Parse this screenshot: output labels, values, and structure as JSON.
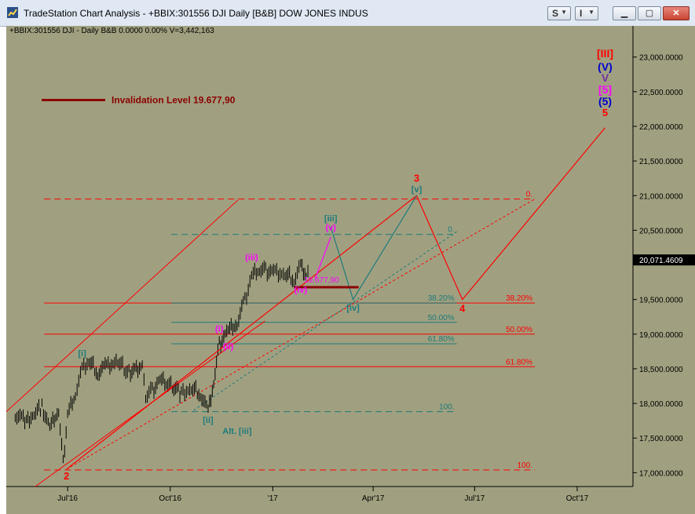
{
  "window": {
    "title": "TradeStation Chart Analysis - +BBIX:301556 DJI Daily [B&B] DOW JONES INDUS",
    "btn_s": "S",
    "btn_i": "I",
    "min_icon": "minimize-icon",
    "max_icon": "maximize-icon",
    "close_icon": "close-icon"
  },
  "info_line": "+BBIX:301556 DJI - Daily  B&B  0.0000  0.00%  V=3,442,163",
  "colors": {
    "background": "#a0a080",
    "red": "#ff0000",
    "darkred": "#8b0000",
    "teal": "#1d7a7a",
    "magenta": "#ff00ff",
    "blue": "#0000cc",
    "price_tag": "#000000"
  },
  "chart_data": {
    "type": "line",
    "symbol": "+BBIX:301556 DJI",
    "interval": "Daily",
    "y_axis": {
      "range": [
        16800,
        23450
      ],
      "ticks": [
        "23,000.0000",
        "22,500.0000",
        "22,000.0000",
        "21,500.0000",
        "21,000.0000",
        "20,500.0000",
        "19,500.0000",
        "19,000.0000",
        "18,500.0000",
        "18,000.0000",
        "17,500.0000",
        "17,000.0000"
      ],
      "tick_values": [
        23000,
        22500,
        22000,
        21500,
        21000,
        20500,
        19500,
        19000,
        18500,
        18000,
        17500,
        17000
      ],
      "last_price_label": "20,071.4609",
      "last_price": 20071.46
    },
    "x_axis": {
      "ticks": [
        "Jul'16",
        "Oct'16",
        "'17",
        "Apr'17",
        "Jul'17",
        "Oct'17"
      ],
      "tick_dates": [
        "2016-07-01",
        "2016-10-01",
        "2017-01-01",
        "2017-04-01",
        "2017-07-01",
        "2017-10-01"
      ],
      "range": [
        "2016-05-07",
        "2017-11-20"
      ]
    },
    "price_series": [
      [
        "2016-05-15",
        17850
      ],
      [
        "2016-05-25",
        17750
      ],
      [
        "2016-06-01",
        17850
      ],
      [
        "2016-06-08",
        17950
      ],
      [
        "2016-06-15",
        17650
      ],
      [
        "2016-06-23",
        17900
      ],
      [
        "2016-06-27",
        17150
      ],
      [
        "2016-07-01",
        17850
      ],
      [
        "2016-07-08",
        18150
      ],
      [
        "2016-07-14",
        18500
      ],
      [
        "2016-07-20",
        18600
      ],
      [
        "2016-07-28",
        18450
      ],
      [
        "2016-08-05",
        18550
      ],
      [
        "2016-08-15",
        18600
      ],
      [
        "2016-08-25",
        18450
      ],
      [
        "2016-09-06",
        18550
      ],
      [
        "2016-09-09",
        18100
      ],
      [
        "2016-09-15",
        18200
      ],
      [
        "2016-09-22",
        18350
      ],
      [
        "2016-10-03",
        18250
      ],
      [
        "2016-10-11",
        18150
      ],
      [
        "2016-10-20",
        18200
      ],
      [
        "2016-10-28",
        18150
      ],
      [
        "2016-11-04",
        17900
      ],
      [
        "2016-11-09",
        18300
      ],
      [
        "2016-11-14",
        18850
      ],
      [
        "2016-11-22",
        19050
      ],
      [
        "2016-11-30",
        19150
      ],
      [
        "2016-12-07",
        19500
      ],
      [
        "2016-12-13",
        19850
      ],
      [
        "2016-12-20",
        19950
      ],
      [
        "2017-01-03",
        19900
      ],
      [
        "2017-01-12",
        19850
      ],
      [
        "2017-01-20",
        19800
      ],
      [
        "2017-01-26",
        20000
      ],
      [
        "2017-01-31",
        19850
      ],
      [
        "2017-02-03",
        20000
      ]
    ],
    "wave_paths": [
      {
        "name": "primary-red",
        "color": "red",
        "points": [
          [
            "2016-06-30",
            17050
          ],
          [
            "2017-05-10",
            21000
          ],
          [
            "2017-06-20",
            19500
          ],
          [
            "2017-10-26",
            21980
          ]
        ]
      },
      {
        "name": "teal-path",
        "color": "teal",
        "points": [
          [
            "2017-02-22",
            20550
          ],
          [
            "2017-03-14",
            19500
          ],
          [
            "2017-05-10",
            21000
          ]
        ]
      },
      {
        "name": "magenta-v",
        "color": "magenta",
        "points": [
          [
            "2017-02-08",
            19800
          ],
          [
            "2017-02-22",
            20400
          ]
        ]
      }
    ],
    "hlines": [
      {
        "label": "0.",
        "y": 20950,
        "color": "red",
        "style": "dashed"
      },
      {
        "label": "38.20%",
        "y": 19450,
        "color": "red",
        "style": "solid"
      },
      {
        "label": "50.00%",
        "y": 19000,
        "color": "red",
        "style": "solid"
      },
      {
        "label": "61.80%",
        "y": 18530,
        "color": "red",
        "style": "solid"
      },
      {
        "label": "100.",
        "y": 17040,
        "color": "red",
        "style": "dashed"
      },
      {
        "label": "0.",
        "y": 20440,
        "color": "teal",
        "style": "dashed"
      },
      {
        "label": "38.20%",
        "y": 19450,
        "color": "teal",
        "style": "solid"
      },
      {
        "label": "50.00%",
        "y": 19170,
        "color": "teal",
        "style": "solid"
      },
      {
        "label": "61.80%",
        "y": 18860,
        "color": "teal",
        "style": "solid"
      },
      {
        "label": "100.",
        "y": 17880,
        "color": "teal",
        "style": "dashed"
      }
    ],
    "invalidation": {
      "label": "Invalidation Level 19.677,90",
      "level_label": "19.677,90",
      "y": 19677.9
    },
    "wave_labels": [
      {
        "text": "2",
        "color": "red",
        "x": "2016-06-30",
        "y": 16900
      },
      {
        "text": "3",
        "color": "red",
        "x": "2017-05-10",
        "y": 21200
      },
      {
        "text": "4",
        "color": "red",
        "x": "2017-06-20",
        "y": 19320
      },
      {
        "text": "5",
        "color": "red",
        "x": "2017-10-26",
        "y": 22150
      },
      {
        "text": "[i]",
        "color": "teal",
        "x": "2016-07-14",
        "y": 18680
      },
      {
        "text": "[ii]",
        "color": "teal",
        "x": "2016-11-04",
        "y": 17720
      },
      {
        "text": "[iii]",
        "color": "teal",
        "x": "2017-02-22",
        "y": 20630
      },
      {
        "text": "[iv]",
        "color": "teal",
        "x": "2017-03-14",
        "y": 19340
      },
      {
        "text": "[v]",
        "color": "teal",
        "x": "2017-05-10",
        "y": 21050
      },
      {
        "text": "Alt. [iii]",
        "color": "teal",
        "x": "2016-11-30",
        "y": 17560
      },
      {
        "text": "(i)",
        "color": "magenta",
        "x": "2016-11-14",
        "y": 19040
      },
      {
        "text": "(ii)",
        "color": "magenta",
        "x": "2016-11-22",
        "y": 18780
      },
      {
        "text": "(iii)",
        "color": "magenta",
        "x": "2016-12-13",
        "y": 20070
      },
      {
        "text": "(iv)",
        "color": "magenta",
        "x": "2017-01-26",
        "y": 19600
      },
      {
        "text": "(v)",
        "color": "magenta",
        "x": "2017-02-22",
        "y": 20500
      }
    ],
    "stacked_labels": [
      {
        "text": "[III]",
        "color": "red"
      },
      {
        "text": "(V)",
        "color": "blue"
      },
      {
        "text": "V",
        "color": "#7030a0"
      },
      {
        "text": "[5]",
        "color": "magenta"
      },
      {
        "text": "(5)",
        "color": "blue"
      }
    ]
  }
}
